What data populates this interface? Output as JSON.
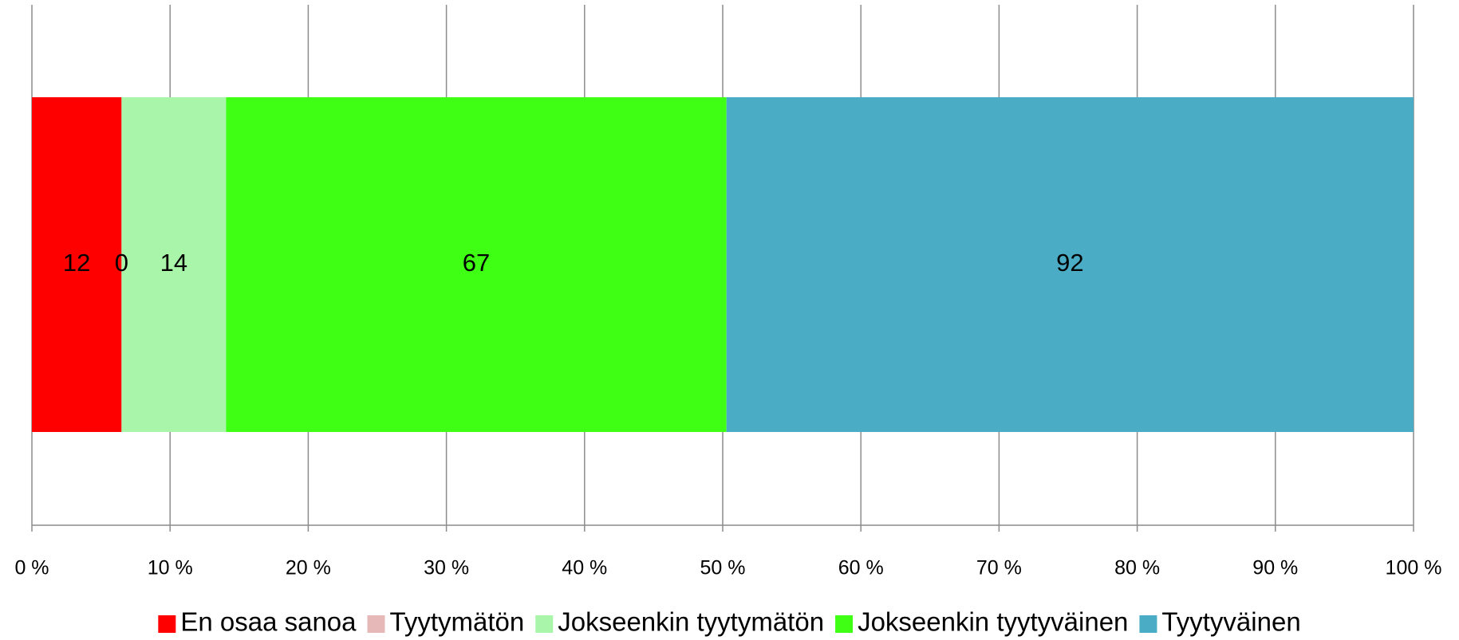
{
  "chart_data": {
    "type": "bar",
    "orientation": "horizontal",
    "stacked": "percent",
    "series": [
      {
        "name": "En osaa sanoa",
        "color": "#ff0000",
        "values": [
          12
        ]
      },
      {
        "name": "Tyytymätön",
        "color": "#e6b9b8",
        "values": [
          0
        ]
      },
      {
        "name": "Jokseenkin tyytymätön",
        "color": "#a9f5a9",
        "values": [
          14
        ]
      },
      {
        "name": "Jokseenkin tyytyväinen",
        "color": "#3fff14",
        "values": [
          67
        ]
      },
      {
        "name": "Tyytyväinen",
        "color": "#4bacc6",
        "values": [
          92
        ]
      }
    ],
    "xlim": [
      0,
      100
    ],
    "xticks": [
      {
        "value": 0,
        "label": "0 %"
      },
      {
        "value": 10,
        "label": "10 %"
      },
      {
        "value": 20,
        "label": "20 %"
      },
      {
        "value": 30,
        "label": "30 %"
      },
      {
        "value": 40,
        "label": "40 %"
      },
      {
        "value": 50,
        "label": "50 %"
      },
      {
        "value": 60,
        "label": "60 %"
      },
      {
        "value": 70,
        "label": "70 %"
      },
      {
        "value": 80,
        "label": "80 %"
      },
      {
        "value": 90,
        "label": "90 %"
      },
      {
        "value": 100,
        "label": "100 %"
      }
    ],
    "grid": true,
    "legend": "bottom"
  }
}
